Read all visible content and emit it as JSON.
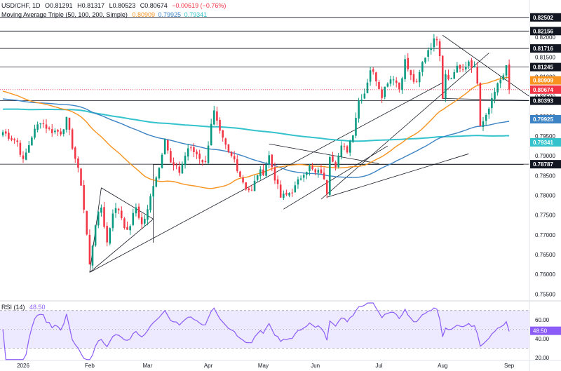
{
  "header": {
    "symbol": "USD/CHF, 1D",
    "open": "O0.81291",
    "high": "H0.81317",
    "low": "L0.80523",
    "close": "C0.80674",
    "change": "−0.00619 (−0.76%)",
    "indicator_name": "Moving Average Triple (50, 100, 200, Simple)",
    "ma_values": [
      "0.80909",
      "0.79925",
      "0.79341"
    ]
  },
  "rsi_header": {
    "name": "RSI (14)",
    "value": "48.50"
  },
  "colors": {
    "up": "#089981",
    "down": "#f23645",
    "ma50": "#f7931e",
    "ma100": "#3b83c4",
    "ma200": "#34c3cc",
    "rsi_line": "#8b5cf6",
    "rsi_band": "#ede9fe",
    "dark_label": "#131722"
  },
  "chart_data": {
    "type": "candlestick",
    "price_axis": {
      "ylim": [
        0.754,
        0.828
      ],
      "ticks": [
        "0.82000",
        "0.81500",
        "0.81000",
        "0.80500",
        "0.80000",
        "0.79500",
        "0.79000",
        "0.78500",
        "0.78000",
        "0.77500",
        "0.77000",
        "0.76500",
        "0.76000",
        "0.75500"
      ],
      "level_labels": [
        {
          "value": 0.82502,
          "text": "0.82502",
          "style": "dark"
        },
        {
          "value": 0.82156,
          "text": "0.82156",
          "style": "dark"
        },
        {
          "value": 0.81716,
          "text": "0.81716",
          "style": "dark"
        },
        {
          "value": 0.81245,
          "text": "0.81245",
          "style": "dark"
        },
        {
          "value": 0.80909,
          "text": "0.80909",
          "style": "ma50"
        },
        {
          "value": 0.80674,
          "text": "0.80674",
          "style": "down"
        },
        {
          "value": 0.80393,
          "text": "0.80393",
          "style": "dark"
        },
        {
          "value": 0.79925,
          "text": "0.79925",
          "style": "ma100"
        },
        {
          "value": 0.79341,
          "text": "0.79341",
          "style": "ma200"
        },
        {
          "value": 0.78787,
          "text": "0.78787",
          "style": "dark"
        }
      ]
    },
    "x_axis": {
      "labels": [
        {
          "bar": 7,
          "text": "2026"
        },
        {
          "bar": 30,
          "text": "Feb"
        },
        {
          "bar": 50,
          "text": "Mar"
        },
        {
          "bar": 71,
          "text": "Apr"
        },
        {
          "bar": 90,
          "text": "May"
        },
        {
          "bar": 108,
          "text": "Jun"
        },
        {
          "bar": 130,
          "text": "Jul"
        },
        {
          "bar": 152,
          "text": "Aug"
        },
        {
          "bar": 175,
          "text": "Sep"
        }
      ]
    },
    "last_close": 0.80674,
    "horizontal_levels": [
      0.82502,
      0.82156,
      0.81716,
      0.81245,
      0.80393,
      0.78787
    ],
    "dotted_level": 0.80674,
    "trendlines": [
      {
        "from": [
          30,
          0.7605
        ],
        "to": [
          52,
          0.774
        ]
      },
      {
        "from": [
          30,
          0.7605
        ],
        "to": [
          34,
          0.7819
        ]
      },
      {
        "from": [
          34,
          0.7819
        ],
        "to": [
          52,
          0.774
        ]
      },
      {
        "from": [
          52,
          0.768
        ],
        "to": [
          52,
          0.7878
        ]
      },
      {
        "from": [
          52,
          0.7878
        ],
        "to": [
          180,
          0.7878
        ]
      },
      {
        "from": [
          30,
          0.7605
        ],
        "to": [
          152,
          0.8085
        ]
      },
      {
        "from": [
          92,
          0.793
        ],
        "to": [
          130,
          0.788
        ]
      },
      {
        "from": [
          97,
          0.7765
        ],
        "to": [
          133,
          0.7925
        ]
      },
      {
        "from": [
          110,
          0.779
        ],
        "to": [
          168,
          0.816
        ]
      },
      {
        "from": [
          112,
          0.7795
        ],
        "to": [
          161,
          0.7905
        ]
      },
      {
        "from": [
          152,
          0.8205
        ],
        "to": [
          182,
          0.805
        ]
      },
      {
        "from": [
          152,
          0.8045
        ],
        "to": [
          182,
          0.804
        ]
      }
    ],
    "x_domain": [
      -1,
      182
    ]
  }
}
